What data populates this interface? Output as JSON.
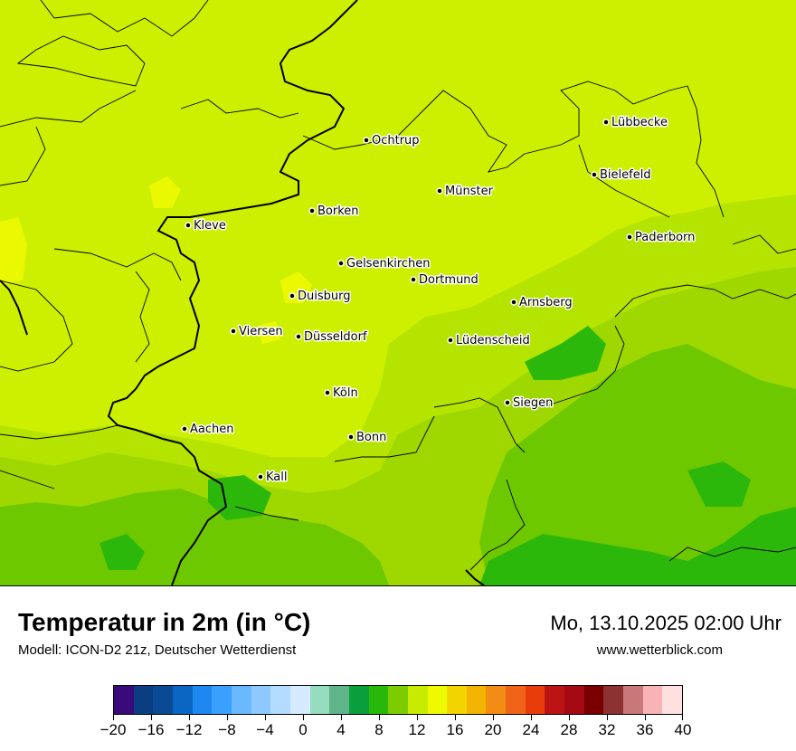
{
  "map": {
    "colors": {
      "base": "#cdf000",
      "warm_patch": "#eaf900",
      "mid": "#b4e400",
      "cool": "#9ed800",
      "cooler": "#6ec800",
      "coolest": "#2cb80a",
      "border_national": "#000000",
      "border_regional": "#000000"
    },
    "cities": [
      {
        "name": "Lübbecke"
      },
      {
        "name": "Ochtrup"
      },
      {
        "name": "Bielefeld"
      },
      {
        "name": "Münster"
      },
      {
        "name": "Borken"
      },
      {
        "name": "Kleve"
      },
      {
        "name": "Paderborn"
      },
      {
        "name": "Gelsenkirchen"
      },
      {
        "name": "Dortmund"
      },
      {
        "name": "Duisburg"
      },
      {
        "name": "Arnsberg"
      },
      {
        "name": "Viersen"
      },
      {
        "name": "Düsseldorf"
      },
      {
        "name": "Lüdenscheid"
      },
      {
        "name": "Köln"
      },
      {
        "name": "Siegen"
      },
      {
        "name": "Aachen"
      },
      {
        "name": "Bonn"
      },
      {
        "name": "Kall"
      }
    ]
  },
  "footer": {
    "title": "Temperatur in 2m (in °C)",
    "subtitle": "Modell: ICON-D2 21z, Deutscher Wetterdienst",
    "datetime": "Mo, 13.10.2025 02:00 Uhr",
    "website": "www.wetterblick.com"
  },
  "colorbar": {
    "colors": [
      "#3b0a7a",
      "#0a3d82",
      "#0a4a94",
      "#0a66c2",
      "#1e88f0",
      "#3aa0ff",
      "#6ab8ff",
      "#8ec8ff",
      "#b4dcff",
      "#d6ebff",
      "#96dcbe",
      "#60b48a",
      "#0a9e3c",
      "#28b80a",
      "#7ccc00",
      "#c8ec00",
      "#eefa00",
      "#f2d400",
      "#f2b400",
      "#f28c14",
      "#f0641a",
      "#e83c0a",
      "#bc1414",
      "#a50a14",
      "#7a0000",
      "#8c3232",
      "#c87878",
      "#f8b4b4",
      "#ffe0e0"
    ],
    "ticks": [
      "−20",
      "−16",
      "−12",
      "−8",
      "−4",
      "0",
      "4",
      "8",
      "12",
      "16",
      "20",
      "24",
      "28",
      "32",
      "36",
      "40"
    ]
  }
}
